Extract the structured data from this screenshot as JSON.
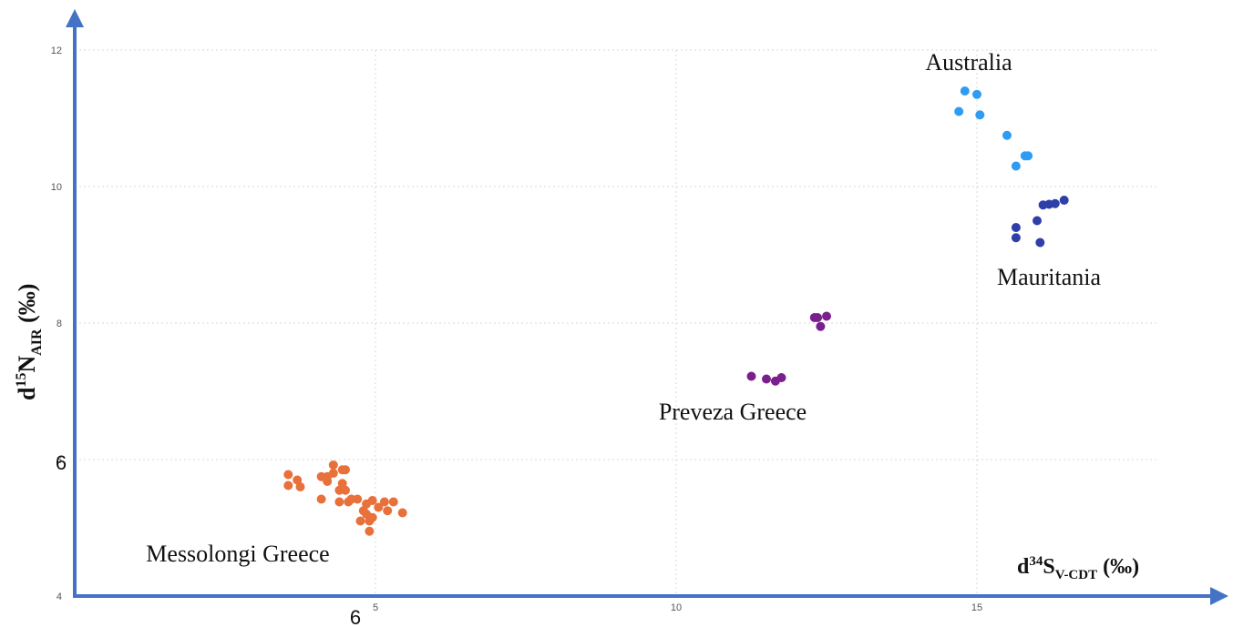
{
  "chart_data": {
    "type": "scatter",
    "xlabel": {
      "prefix": "d",
      "sup": "34",
      "main": "S",
      "sub": "V-CDT",
      "suffix": " (‰)"
    },
    "ylabel": {
      "prefix": "d",
      "sup": "15",
      "main": "N",
      "sub": "AIR",
      "suffix": " (‰)"
    },
    "xlim": [
      0,
      18
    ],
    "ylim": [
      4,
      12
    ],
    "grid": true,
    "x_ticks": [
      5,
      10,
      15
    ],
    "y_ticks": [
      4,
      6,
      8,
      10,
      12
    ],
    "extra_labels": {
      "y_six": "6",
      "x_six": "6"
    },
    "series": [
      {
        "name": "Australia",
        "color": "#2e9cf2",
        "points": [
          [
            14.8,
            11.4
          ],
          [
            15.0,
            11.35
          ],
          [
            14.7,
            11.1
          ],
          [
            15.05,
            11.05
          ],
          [
            15.5,
            10.75
          ],
          [
            15.8,
            10.45
          ],
          [
            15.85,
            10.45
          ],
          [
            15.65,
            10.3
          ]
        ]
      },
      {
        "name": "Mauritania",
        "color": "#2f3fa8",
        "points": [
          [
            16.1,
            9.73
          ],
          [
            16.2,
            9.74
          ],
          [
            16.3,
            9.75
          ],
          [
            16.45,
            9.8
          ],
          [
            16.0,
            9.5
          ],
          [
            15.65,
            9.4
          ],
          [
            15.65,
            9.25
          ],
          [
            16.05,
            9.18
          ]
        ]
      },
      {
        "name": "Preveza Greece",
        "color": "#7b1f8e",
        "points": [
          [
            12.3,
            8.08
          ],
          [
            12.35,
            8.08
          ],
          [
            12.5,
            8.1
          ],
          [
            12.4,
            7.95
          ],
          [
            11.25,
            7.22
          ],
          [
            11.5,
            7.18
          ],
          [
            11.65,
            7.15
          ],
          [
            11.75,
            7.2
          ]
        ]
      },
      {
        "name": "Messolongi Greece",
        "color": "#e8703a",
        "points": [
          [
            3.55,
            5.78
          ],
          [
            3.7,
            5.7
          ],
          [
            3.55,
            5.62
          ],
          [
            3.75,
            5.6
          ],
          [
            4.3,
            5.92
          ],
          [
            4.45,
            5.85
          ],
          [
            4.5,
            5.85
          ],
          [
            4.3,
            5.8
          ],
          [
            4.2,
            5.75
          ],
          [
            4.1,
            5.75
          ],
          [
            4.2,
            5.68
          ],
          [
            4.45,
            5.65
          ],
          [
            4.5,
            5.55
          ],
          [
            4.4,
            5.55
          ],
          [
            4.1,
            5.42
          ],
          [
            4.6,
            5.42
          ],
          [
            4.7,
            5.42
          ],
          [
            4.4,
            5.38
          ],
          [
            4.55,
            5.38
          ],
          [
            4.95,
            5.4
          ],
          [
            5.15,
            5.38
          ],
          [
            5.3,
            5.38
          ],
          [
            4.85,
            5.35
          ],
          [
            5.05,
            5.3
          ],
          [
            4.8,
            5.25
          ],
          [
            5.2,
            5.25
          ],
          [
            5.45,
            5.22
          ],
          [
            4.85,
            5.2
          ],
          [
            4.95,
            5.15
          ],
          [
            4.75,
            5.1
          ],
          [
            4.9,
            5.1
          ],
          [
            4.9,
            4.95
          ]
        ]
      }
    ]
  }
}
